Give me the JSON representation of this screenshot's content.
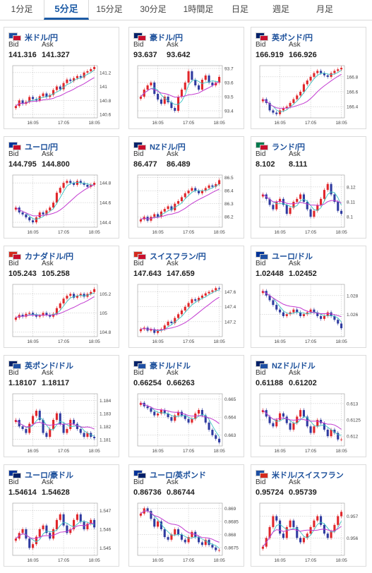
{
  "tabs": [
    {
      "label": "1分足",
      "active": false
    },
    {
      "label": "5分足",
      "active": true
    },
    {
      "label": "15分足",
      "active": false
    },
    {
      "label": "30分足",
      "active": false
    },
    {
      "label": "1時間足",
      "active": false
    },
    {
      "label": "日足",
      "active": false
    },
    {
      "label": "週足",
      "active": false
    },
    {
      "label": "月足",
      "active": false
    }
  ],
  "labels": {
    "bid": "Bid",
    "ask": "Ask"
  },
  "colors": {
    "up": "#e0262a",
    "down": "#2f3ba0",
    "ma_fast": "#3ac2c0",
    "ma_slow": "#c23ad0",
    "accent": "#1b5aa5"
  },
  "cards": [
    {
      "pair": "米ドル/円",
      "bid": "141.316",
      "ask": "141.327",
      "flags": [
        "#1e4fa3",
        "#c8102e"
      ],
      "chart_data": {
        "type": "candlestick",
        "xticks": [
          "16:05",
          "17:05",
          "18:05"
        ],
        "yticks": [
          "141.2",
          "141",
          "140.8",
          "140.6"
        ],
        "ylim": [
          140.55,
          141.3
        ],
        "closes": [
          140.72,
          140.8,
          140.75,
          140.78,
          140.85,
          140.82,
          140.8,
          140.86,
          140.9,
          140.85,
          140.88,
          140.95,
          141.0,
          140.96,
          141.05,
          141.1,
          141.08,
          141.12,
          141.15,
          141.13,
          141.2,
          141.22,
          141.25,
          141.28
        ]
      }
    },
    {
      "pair": "豪ドル/円",
      "bid": "93.637",
      "ask": "93.642",
      "flags": [
        "#012169",
        "#c8102e"
      ],
      "chart_data": {
        "type": "candlestick",
        "xticks": [
          "16:05",
          "17:05",
          "18:05"
        ],
        "yticks": [
          "93.7",
          "93.6",
          "93.5",
          "93.4"
        ],
        "ylim": [
          93.35,
          93.72
        ],
        "closes": [
          93.5,
          93.55,
          93.58,
          93.6,
          93.52,
          93.48,
          93.45,
          93.5,
          93.46,
          93.42,
          93.4,
          93.5,
          93.55,
          93.6,
          93.68,
          93.62,
          93.58,
          93.55,
          93.62,
          93.65,
          93.6,
          93.58,
          93.6,
          93.64
        ]
      }
    },
    {
      "pair": "英ポンド/円",
      "bid": "166.919",
      "ask": "166.926",
      "flags": [
        "#012169",
        "#c8102e"
      ],
      "chart_data": {
        "type": "candlestick",
        "xticks": [
          "16:05",
          "17:05",
          "18:05"
        ],
        "yticks": [
          "166.8",
          "166.6",
          "166.4"
        ],
        "ylim": [
          166.25,
          166.95
        ],
        "closes": [
          166.5,
          166.45,
          166.35,
          166.32,
          166.3,
          166.35,
          166.38,
          166.4,
          166.45,
          166.5,
          166.55,
          166.6,
          166.7,
          166.75,
          166.8,
          166.85,
          166.88,
          166.85,
          166.82,
          166.8,
          166.85,
          166.88,
          166.9,
          166.92
        ]
      }
    },
    {
      "pair": "ユーロ/円",
      "bid": "144.795",
      "ask": "144.800",
      "flags": [
        "#003399",
        "#c8102e"
      ],
      "chart_data": {
        "type": "candlestick",
        "xticks": [
          "16:05",
          "17:05",
          "18:05"
        ],
        "yticks": [
          "144.8",
          "144.6",
          "144.4"
        ],
        "ylim": [
          144.35,
          144.88
        ],
        "closes": [
          144.55,
          144.5,
          144.48,
          144.45,
          144.42,
          144.4,
          144.45,
          144.5,
          144.48,
          144.52,
          144.55,
          144.6,
          144.7,
          144.75,
          144.8,
          144.82,
          144.8,
          144.78,
          144.82,
          144.8,
          144.78,
          144.76,
          144.78,
          144.8
        ]
      }
    },
    {
      "pair": "NZドル/円",
      "bid": "86.477",
      "ask": "86.489",
      "flags": [
        "#012169",
        "#c8102e"
      ],
      "chart_data": {
        "type": "candlestick",
        "xticks": [
          "16:05",
          "17:05",
          "18:05"
        ],
        "yticks": [
          "86.5",
          "86.4",
          "86.3",
          "86.2"
        ],
        "ylim": [
          86.12,
          86.52
        ],
        "closes": [
          86.18,
          86.2,
          86.17,
          86.2,
          86.22,
          86.2,
          86.24,
          86.26,
          86.28,
          86.25,
          86.3,
          86.32,
          86.35,
          86.38,
          86.4,
          86.42,
          86.4,
          86.38,
          86.4,
          86.42,
          86.44,
          86.43,
          86.45,
          86.48
        ]
      }
    },
    {
      "pair": "ランド/円",
      "bid": "8.102",
      "ask": "8.111",
      "flags": [
        "#007a4d",
        "#c8102e"
      ],
      "chart_data": {
        "type": "candlestick",
        "xticks": [
          "16:05",
          "17:05",
          "18:05"
        ],
        "yticks": [
          "8.12",
          "8.11",
          "8.1"
        ],
        "ylim": [
          8.093,
          8.128
        ],
        "closes": [
          8.115,
          8.112,
          8.108,
          8.105,
          8.11,
          8.112,
          8.108,
          8.102,
          8.106,
          8.11,
          8.112,
          8.115,
          8.11,
          8.105,
          8.1,
          8.104,
          8.108,
          8.112,
          8.118,
          8.122,
          8.115,
          8.11,
          8.104,
          8.102
        ]
      }
    },
    {
      "pair": "カナダドル/円",
      "bid": "105.243",
      "ask": "105.258",
      "flags": [
        "#d52b1e",
        "#c8102e"
      ],
      "chart_data": {
        "type": "candlestick",
        "xticks": [
          "16:05",
          "17:05",
          "18:05"
        ],
        "yticks": [
          "105.2",
          "105",
          "104.8"
        ],
        "ylim": [
          104.75,
          105.3
        ],
        "closes": [
          104.95,
          104.98,
          104.96,
          104.99,
          105.0,
          104.98,
          104.96,
          104.97,
          105.0,
          104.98,
          104.96,
          104.99,
          105.05,
          105.1,
          105.15,
          105.18,
          105.2,
          105.16,
          105.18,
          105.2,
          105.17,
          105.2,
          105.22,
          105.25
        ]
      }
    },
    {
      "pair": "スイスフラン/円",
      "bid": "147.643",
      "ask": "147.659",
      "flags": [
        "#d52b1e",
        "#c8102e"
      ],
      "chart_data": {
        "type": "candlestick",
        "xticks": [
          "16:05",
          "17:05",
          "18:05"
        ],
        "yticks": [
          "147.6",
          "147.4",
          "147.2"
        ],
        "ylim": [
          147.0,
          147.7
        ],
        "closes": [
          147.1,
          147.12,
          147.08,
          147.1,
          147.05,
          147.08,
          147.1,
          147.15,
          147.2,
          147.18,
          147.25,
          147.3,
          147.35,
          147.4,
          147.45,
          147.5,
          147.48,
          147.52,
          147.55,
          147.58,
          147.6,
          147.62,
          147.65,
          147.64
        ]
      }
    },
    {
      "pair": "ユーロ/ドル",
      "bid": "1.02448",
      "ask": "1.02452",
      "flags": [
        "#003399",
        "#1e4fa3"
      ],
      "chart_data": {
        "type": "candlestick",
        "xticks": [
          "16:05",
          "17:05",
          "18:05"
        ],
        "yticks": [
          "1.028",
          "1.026"
        ],
        "ylim": [
          1.0236,
          1.0292
        ],
        "closes": [
          1.0285,
          1.028,
          1.0275,
          1.027,
          1.0265,
          1.0262,
          1.0258,
          1.026,
          1.0262,
          1.0265,
          1.0262,
          1.0258,
          1.026,
          1.0262,
          1.0265,
          1.0262,
          1.0258,
          1.0255,
          1.0258,
          1.0262,
          1.0258,
          1.0254,
          1.025,
          1.0245
        ]
      }
    },
    {
      "pair": "英ポンド/ドル",
      "bid": "1.18107",
      "ask": "1.18117",
      "flags": [
        "#012169",
        "#1e4fa3"
      ],
      "chart_data": {
        "type": "candlestick",
        "xticks": [
          "16:05",
          "17:05",
          "18:05"
        ],
        "yticks": [
          "1.184",
          "1.183",
          "1.182",
          "1.181"
        ],
        "ylim": [
          1.1805,
          1.1845
        ],
        "closes": [
          1.1825,
          1.182,
          1.1818,
          1.1815,
          1.1822,
          1.1828,
          1.1832,
          1.1825,
          1.1815,
          1.1812,
          1.1818,
          1.1825,
          1.183,
          1.1822,
          1.1815,
          1.1818,
          1.1825,
          1.1822,
          1.1818,
          1.1815,
          1.1812,
          1.1815,
          1.1812,
          1.1811
        ]
      }
    },
    {
      "pair": "豪ドル/ドル",
      "bid": "0.66254",
      "ask": "0.66263",
      "flags": [
        "#012169",
        "#1e4fa3"
      ],
      "chart_data": {
        "type": "candlestick",
        "xticks": [
          "16:05",
          "17:05",
          "18:05"
        ],
        "yticks": [
          "0.665",
          "0.664",
          "0.663"
        ],
        "ylim": [
          0.6624,
          0.6653
        ],
        "closes": [
          0.6648,
          0.6646,
          0.6645,
          0.6643,
          0.6641,
          0.6642,
          0.6644,
          0.6642,
          0.664,
          0.6638,
          0.6641,
          0.6643,
          0.6641,
          0.6639,
          0.6637,
          0.6639,
          0.6642,
          0.6644,
          0.6641,
          0.6637,
          0.6633,
          0.663,
          0.6628,
          0.6626
        ]
      }
    },
    {
      "pair": "NZドル/ドル",
      "bid": "0.61188",
      "ask": "0.61202",
      "flags": [
        "#012169",
        "#1e4fa3"
      ],
      "chart_data": {
        "type": "candlestick",
        "xticks": [
          "16:05",
          "17:05",
          "18:05"
        ],
        "yticks": [
          "0.613",
          "0.6125",
          "0.612"
        ],
        "ylim": [
          0.6117,
          0.6133
        ],
        "closes": [
          0.6128,
          0.6126,
          0.6124,
          0.6123,
          0.6125,
          0.6127,
          0.6126,
          0.6124,
          0.6122,
          0.6124,
          0.6126,
          0.6128,
          0.6126,
          0.6123,
          0.6121,
          0.6123,
          0.6125,
          0.6124,
          0.6122,
          0.612,
          0.6122,
          0.6121,
          0.6119,
          0.6119
        ]
      }
    },
    {
      "pair": "ユーロ/豪ドル",
      "bid": "1.54614",
      "ask": "1.54628",
      "flags": [
        "#003399",
        "#012169"
      ],
      "chart_data": {
        "type": "candlestick",
        "xticks": [
          "16:05",
          "17:05",
          "18:05"
        ],
        "yticks": [
          "1.547",
          "1.546",
          "1.545"
        ],
        "ylim": [
          1.5446,
          1.5474
        ],
        "closes": [
          1.5455,
          1.5458,
          1.546,
          1.5455,
          1.545,
          1.5452,
          1.5456,
          1.546,
          1.5462,
          1.5458,
          1.5455,
          1.546,
          1.5465,
          1.5468,
          1.5462,
          1.5458,
          1.546,
          1.5465,
          1.5468,
          1.5464,
          1.546,
          1.5463,
          1.5465,
          1.5461
        ]
      }
    },
    {
      "pair": "ユーロ/英ポンド",
      "bid": "0.86736",
      "ask": "0.86744",
      "flags": [
        "#003399",
        "#012169"
      ],
      "chart_data": {
        "type": "candlestick",
        "xticks": [
          "16:05",
          "17:05",
          "18:05"
        ],
        "yticks": [
          "0.869",
          "0.8685",
          "0.868",
          "0.8675"
        ],
        "ylim": [
          0.8672,
          0.8692
        ],
        "closes": [
          0.8688,
          0.869,
          0.8689,
          0.8686,
          0.8683,
          0.8685,
          0.8682,
          0.8679,
          0.8678,
          0.868,
          0.8682,
          0.868,
          0.8678,
          0.8677,
          0.8679,
          0.8681,
          0.8679,
          0.8677,
          0.8676,
          0.8678,
          0.8676,
          0.8675,
          0.8674,
          0.8674
        ]
      }
    },
    {
      "pair": "米ドル/スイスフラン",
      "bid": "0.95724",
      "ask": "0.95739",
      "flags": [
        "#1e4fa3",
        "#d52b1e"
      ],
      "chart_data": {
        "type": "candlestick",
        "xticks": [
          "16:05",
          "17:05",
          "18:05"
        ],
        "yticks": [
          "0.957",
          "0.956"
        ],
        "ylim": [
          0.9552,
          0.9576
        ],
        "closes": [
          0.9556,
          0.956,
          0.9565,
          0.957,
          0.9568,
          0.9562,
          0.956,
          0.9565,
          0.9568,
          0.9565,
          0.956,
          0.9558,
          0.956,
          0.9562,
          0.9565,
          0.9568,
          0.957,
          0.9566,
          0.9562,
          0.956,
          0.9563,
          0.9566,
          0.957,
          0.9572
        ]
      }
    }
  ]
}
